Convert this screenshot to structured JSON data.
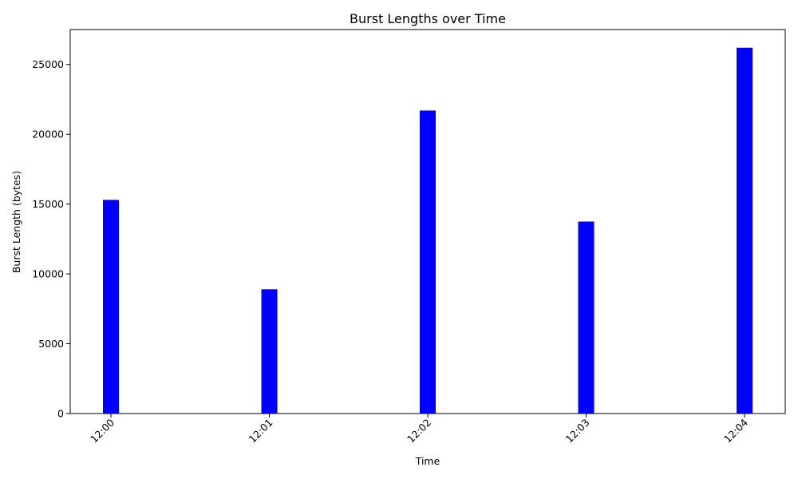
{
  "chart_data": {
    "type": "bar",
    "title": "Burst Lengths over Time",
    "xlabel": "Time",
    "ylabel": "Burst Length (bytes)",
    "categories": [
      "12:00",
      "12:01",
      "12:02",
      "12:03",
      "12:04"
    ],
    "values": [
      15300,
      8900,
      21700,
      13750,
      26200
    ],
    "ylim": [
      0,
      27500
    ],
    "yticks": [
      0,
      5000,
      10000,
      15000,
      20000,
      25000
    ],
    "x_tick_rotation_deg": 45,
    "bar_color": "#0000ff",
    "grid": false,
    "legend": "none"
  }
}
